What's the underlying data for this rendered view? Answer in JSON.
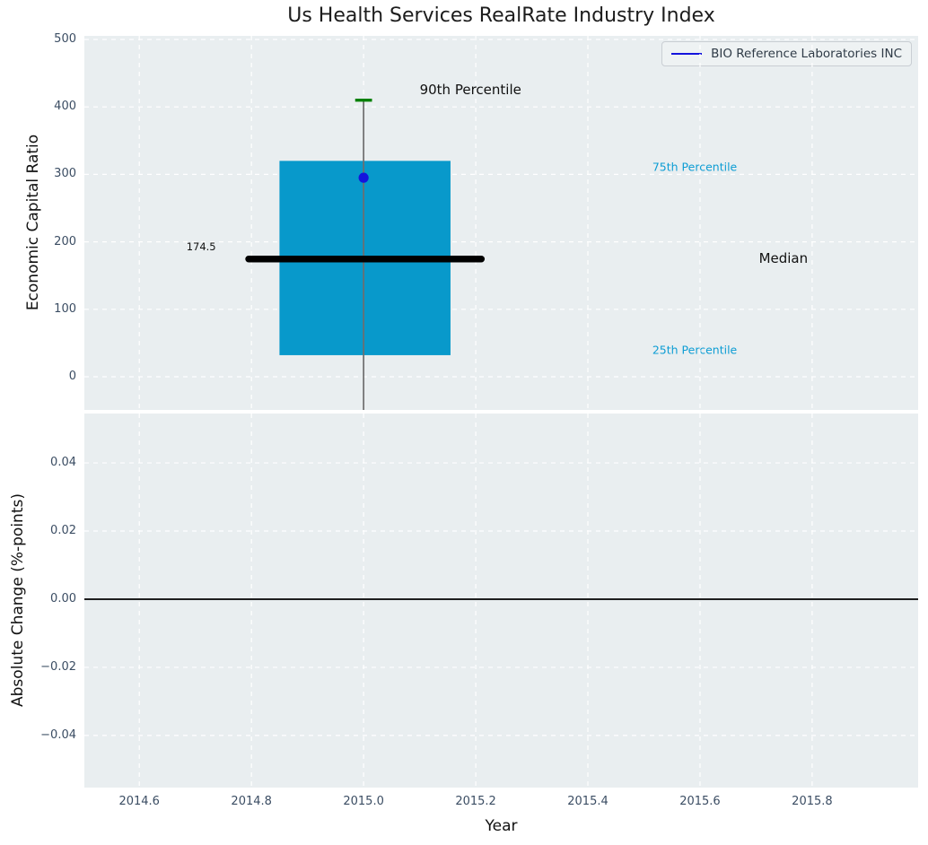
{
  "figure": {
    "title": "Us Health Services RealRate Industry Index",
    "background": "#ffffff",
    "axes_background": "#e9eef0",
    "grid_color": "#ffffff",
    "tick_color": "#3b4d63"
  },
  "chart_data": [
    {
      "type": "boxplot",
      "title": "Us Health Services RealRate Industry Index",
      "ylabel": "Economic Capital Ratio",
      "xlim": [
        2014.502,
        2015.989
      ],
      "ylim": [
        -49.2,
        505.3
      ],
      "grid": true,
      "xticks": [
        2014.6,
        2014.8,
        2015.0,
        2015.2,
        2015.4,
        2015.6,
        2015.8
      ],
      "xtick_labels_visible": false,
      "yticks": [
        0,
        100,
        200,
        300,
        400,
        500
      ],
      "ytick_labels": [
        "0",
        "100",
        "200",
        "300",
        "400",
        "500"
      ],
      "box": {
        "x": 2015.0,
        "p90": 410,
        "q3": 320,
        "median": 174.5,
        "q1": 32,
        "whisker_low": "clipped below axis bottom",
        "box_left": 2014.85,
        "box_right": 2015.155,
        "median_line_left": 2014.795,
        "median_line_right": 2015.21,
        "cap_half_width": 0.015,
        "box_color": "#0899cb",
        "median_color": "#000000",
        "whisker_color": "#6e6e6e",
        "cap_color": "#008000"
      },
      "point": {
        "x": 2015.0,
        "y": 295,
        "color": "#1414dd"
      },
      "annotations": {
        "p90": {
          "text": "90th Percentile",
          "x": 2015.1,
          "y": 425,
          "color": "#111111",
          "size": 15
        },
        "p75": {
          "text": "75th Percentile",
          "x": 2015.515,
          "y": 311,
          "color": "#0d9dd4",
          "size": 12.5
        },
        "median": {
          "text": "Median",
          "x": 2015.705,
          "y": 175,
          "color": "#111111",
          "size": 15
        },
        "p25": {
          "text": "25th Percentile",
          "x": 2015.515,
          "y": 40,
          "color": "#0d9dd4",
          "size": 12.5
        },
        "median_value": {
          "text": "174.5",
          "x": 2014.684,
          "y": 193,
          "color": "#111111",
          "size": 11.5
        }
      },
      "legend": {
        "label": "BIO Reference Laboratories INC",
        "line_color": "#1414dd",
        "position": "upper right"
      }
    },
    {
      "type": "line",
      "ylabel": "Absolute Change (%-points)",
      "xlabel": "Year",
      "xlim": [
        2014.502,
        2015.989
      ],
      "ylim": [
        -0.0553,
        0.0545
      ],
      "grid": true,
      "xticks": [
        2014.6,
        2014.8,
        2015.0,
        2015.2,
        2015.4,
        2015.6,
        2015.8
      ],
      "xtick_labels": [
        "2014.6",
        "2014.8",
        "2015.0",
        "2015.2",
        "2015.4",
        "2015.6",
        "2015.8"
      ],
      "xtick_labels_visible": true,
      "yticks": [
        0.04,
        0.02,
        0.0,
        -0.02,
        -0.04
      ],
      "ytick_labels": [
        "0.04",
        "0.02",
        "0.00",
        "−0.02",
        "−0.04"
      ],
      "zero_line_y": 0.0,
      "zero_line_color": "#000000",
      "series": []
    }
  ]
}
